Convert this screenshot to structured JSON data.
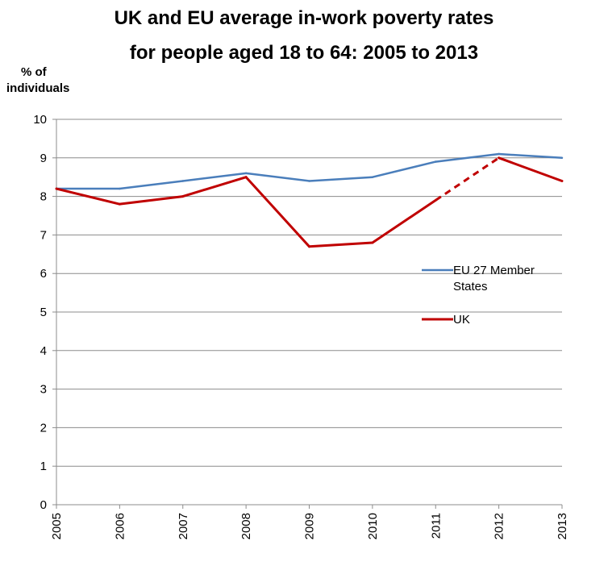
{
  "chart_data": {
    "type": "line",
    "title_line1": "UK and EU average in-work poverty rates",
    "title_line2": "for people aged 18 to 64: 2005 to 2013",
    "ylabel_line1": "% of",
    "ylabel_line2": "individuals",
    "xlabel": "",
    "ylim": [
      0,
      10
    ],
    "y_ticks": [
      0,
      1,
      2,
      3,
      4,
      5,
      6,
      7,
      8,
      9,
      10
    ],
    "categories": [
      "2005",
      "2006",
      "2007",
      "2008",
      "2009",
      "2010",
      "2011",
      "2012",
      "2013"
    ],
    "grid": true,
    "legend_position": "right",
    "series": [
      {
        "name": "EU 27 Member States",
        "name_line1": "EU 27 Member",
        "name_line2": "States",
        "color": "#4a7ebb",
        "values": [
          8.2,
          8.2,
          8.4,
          8.6,
          8.4,
          8.5,
          8.9,
          9.1,
          9.0
        ]
      },
      {
        "name": "UK",
        "color": "#c00000",
        "values": [
          8.2,
          7.8,
          8.0,
          8.5,
          6.7,
          6.8,
          7.9,
          9.0,
          8.4
        ],
        "dashed_segment": [
          "2011",
          "2012"
        ]
      }
    ]
  }
}
